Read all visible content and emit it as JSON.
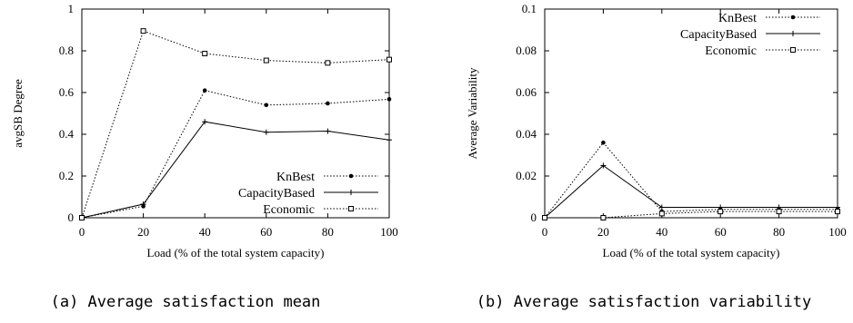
{
  "chart_data": [
    {
      "type": "line",
      "caption": "(a) Average satisfaction mean",
      "xlabel": "Load (% of the total system capacity)",
      "ylabel": "avgSB Degree",
      "x": [
        0,
        20,
        40,
        60,
        80,
        100
      ],
      "xlim": [
        0,
        100
      ],
      "ylim": [
        0,
        1
      ],
      "xticks": [
        "0",
        "20",
        "40",
        "60",
        "80",
        "100"
      ],
      "yticks": [
        "0",
        "0.2",
        "0.4",
        "0.6",
        "0.8",
        "1"
      ],
      "legend_position": "bottom-right",
      "series": [
        {
          "name": "KnBest",
          "values": [
            0,
            0.055,
            0.61,
            0.54,
            0.548,
            0.568
          ],
          "marker": "dot",
          "dash": "dotted",
          "color": "#000000"
        },
        {
          "name": "CapacityBased",
          "values": [
            0,
            0.065,
            0.46,
            0.41,
            0.415,
            0.373
          ],
          "marker": "plus",
          "dash": "solid",
          "color": "#000000"
        },
        {
          "name": "Economic",
          "values": [
            0,
            0.895,
            0.787,
            0.754,
            0.742,
            0.758
          ],
          "marker": "square",
          "dash": "dotted",
          "color": "#000000"
        }
      ]
    },
    {
      "type": "line",
      "caption": "(b) Average satisfaction variability",
      "xlabel": "Load (% of the total system capacity)",
      "ylabel": "Average Variability",
      "x": [
        0,
        20,
        40,
        60,
        80,
        100
      ],
      "xlim": [
        0,
        100
      ],
      "ylim": [
        0,
        0.1
      ],
      "xticks": [
        "0",
        "20",
        "40",
        "60",
        "80",
        "100"
      ],
      "yticks": [
        "0",
        "0.02",
        "0.04",
        "0.06",
        "0.08",
        "0.1"
      ],
      "legend_position": "top-right",
      "series": [
        {
          "name": "KnBest",
          "values": [
            0,
            0.036,
            0.003,
            0.004,
            0.004,
            0.004
          ],
          "marker": "dot",
          "dash": "dotted",
          "color": "#000000"
        },
        {
          "name": "CapacityBased",
          "values": [
            0,
            0.025,
            0.005,
            0.005,
            0.005,
            0.005
          ],
          "marker": "plus",
          "dash": "solid",
          "color": "#000000"
        },
        {
          "name": "Economic",
          "values": [
            0,
            0,
            0.002,
            0.003,
            0.003,
            0.003
          ],
          "marker": "square",
          "dash": "dotted",
          "color": "#000000"
        }
      ]
    }
  ]
}
